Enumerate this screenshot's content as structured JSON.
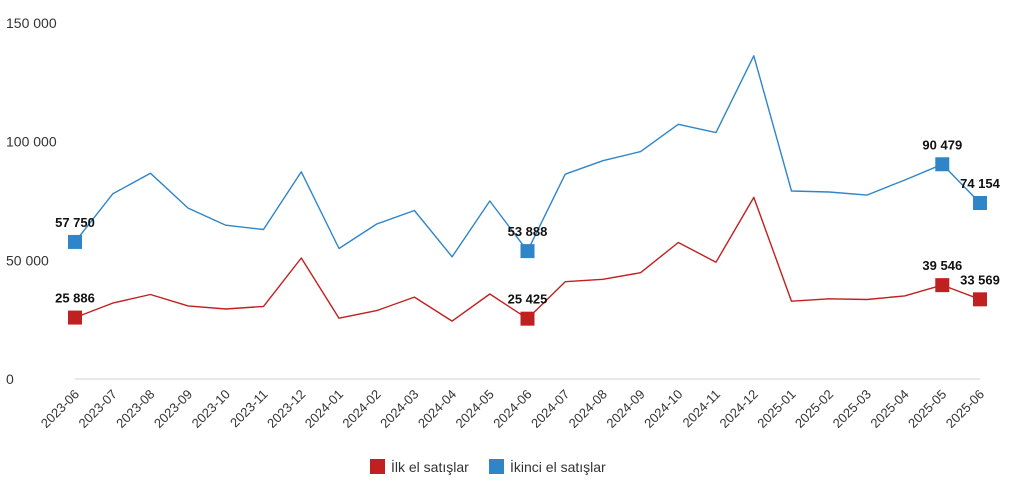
{
  "chart_data": {
    "type": "line",
    "title": "",
    "xlabel": "",
    "ylabel": "",
    "ylim": [
      0,
      150000
    ],
    "yticks": [
      {
        "value": 0,
        "label": "0"
      },
      {
        "value": 50000,
        "label": "50 000"
      },
      {
        "value": 100000,
        "label": "100 000"
      },
      {
        "value": 150000,
        "label": "150 000"
      }
    ],
    "grid": false,
    "legend_position": "bottom-center",
    "x": [
      "2023-06",
      "2023-07",
      "2023-08",
      "2023-09",
      "2023-10",
      "2023-11",
      "2023-12",
      "2024-01",
      "2024-02",
      "2024-03",
      "2024-04",
      "2024-05",
      "2024-06",
      "2024-07",
      "2024-08",
      "2024-09",
      "2024-10",
      "2024-11",
      "2024-12",
      "2025-01",
      "2025-02",
      "2025-03",
      "2025-04",
      "2025-05",
      "2025-06"
    ],
    "series": [
      {
        "name": "İlk el satışlar",
        "color": "#c0201f",
        "values": [
          25886,
          32000,
          35600,
          30800,
          29500,
          30600,
          51000,
          25600,
          28800,
          34500,
          24400,
          35800,
          25425,
          41000,
          42000,
          44800,
          57500,
          49200,
          76500,
          32800,
          33800,
          33500,
          35000,
          39546,
          33569
        ],
        "marked": [
          {
            "index": 0,
            "label": "25 886"
          },
          {
            "index": 12,
            "label": "25 425"
          },
          {
            "index": 23,
            "label": "39 546"
          },
          {
            "index": 24,
            "label": "33 569"
          }
        ]
      },
      {
        "name": "İkinci el satışlar",
        "color": "#2e86c9",
        "values": [
          57750,
          78000,
          86700,
          72000,
          64800,
          63000,
          87300,
          55000,
          65300,
          71000,
          51500,
          75000,
          53888,
          86300,
          92000,
          95800,
          107300,
          103800,
          136200,
          79200,
          78800,
          77500,
          83800,
          90479,
          74154
        ],
        "marked": [
          {
            "index": 0,
            "label": "57 750"
          },
          {
            "index": 12,
            "label": "53 888"
          },
          {
            "index": 23,
            "label": "90 479"
          },
          {
            "index": 24,
            "label": "74 154"
          }
        ]
      }
    ]
  }
}
